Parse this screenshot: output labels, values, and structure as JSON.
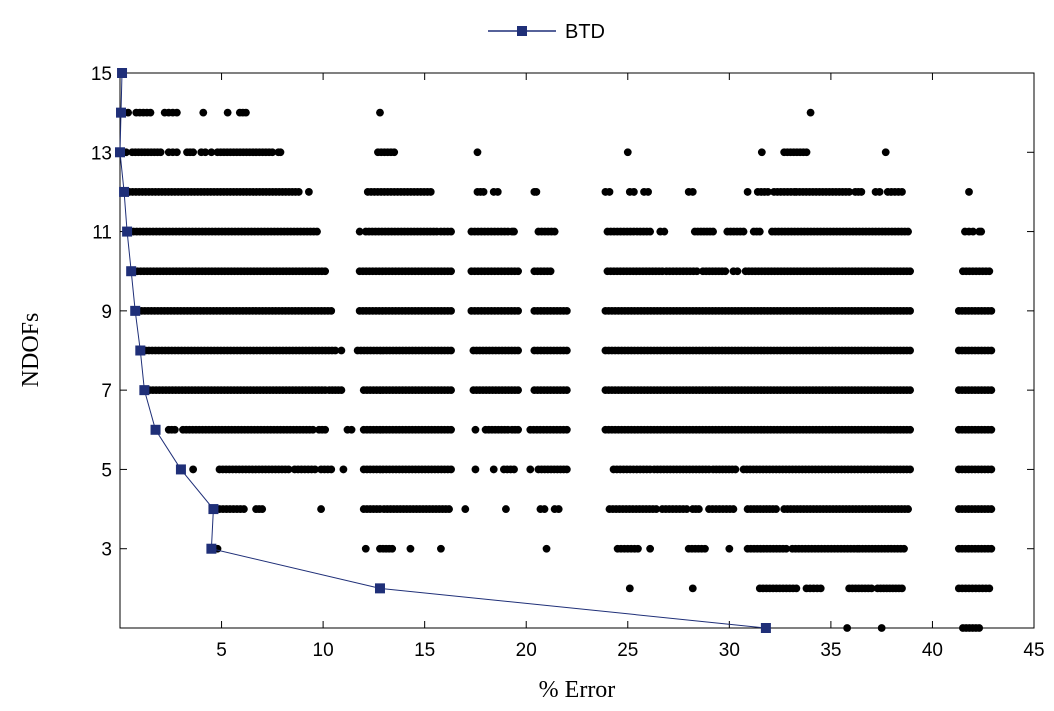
{
  "chart_data": {
    "type": "scatter",
    "xlabel": "% Error",
    "ylabel": "NDOFs",
    "xlim": [
      0,
      45
    ],
    "ylim": [
      1,
      15
    ],
    "xticks": [
      5,
      10,
      15,
      20,
      25,
      30,
      35,
      40,
      45
    ],
    "yticks": [
      3,
      5,
      7,
      9,
      11,
      13,
      15
    ],
    "grid": false,
    "legend_position": "top-center",
    "colors": {
      "btd": "#1f2f78",
      "scatter": "#000000"
    },
    "series": [
      {
        "name": "BTD",
        "kind": "line-with-square-markers",
        "points": [
          {
            "x": 0.1,
            "y": 15
          },
          {
            "x": 0.05,
            "y": 14
          },
          {
            "x": 0.0,
            "y": 13
          },
          {
            "x": 0.2,
            "y": 12
          },
          {
            "x": 0.35,
            "y": 11
          },
          {
            "x": 0.55,
            "y": 10
          },
          {
            "x": 0.75,
            "y": 9
          },
          {
            "x": 1.0,
            "y": 8
          },
          {
            "x": 1.2,
            "y": 7
          },
          {
            "x": 1.75,
            "y": 6
          },
          {
            "x": 3.0,
            "y": 5
          },
          {
            "x": 4.6,
            "y": 4
          },
          {
            "x": 4.5,
            "y": 3
          },
          {
            "x": 12.8,
            "y": 2
          },
          {
            "x": 31.8,
            "y": 1
          }
        ]
      },
      {
        "kind": "scatter-dots",
        "rows": [
          {
            "y": 1,
            "segments": [
              [
                35.8,
                35.8
              ],
              [
                37.5,
                37.5
              ],
              [
                41.5,
                42.3
              ]
            ]
          },
          {
            "y": 2,
            "segments": [
              [
                25.1,
                25.1
              ],
              [
                28.2,
                28.2
              ],
              [
                31.5,
                33.3
              ],
              [
                33.8,
                34.5
              ],
              [
                35.9,
                37.0
              ],
              [
                37.3,
                38.5
              ],
              [
                41.3,
                42.8
              ]
            ]
          },
          {
            "y": 3,
            "segments": [
              [
                4.8,
                4.8
              ],
              [
                12.1,
                12.1
              ],
              [
                12.8,
                13.4
              ],
              [
                14.3,
                14.3
              ],
              [
                15.8,
                15.8
              ],
              [
                21.0,
                21.0
              ],
              [
                24.5,
                25.5
              ],
              [
                26.1,
                26.1
              ],
              [
                28.0,
                28.8
              ],
              [
                30.0,
                30.0
              ],
              [
                30.9,
                32.8
              ],
              [
                33.1,
                36.3
              ],
              [
                36.4,
                38.6
              ],
              [
                41.3,
                42.9
              ]
            ]
          },
          {
            "y": 4,
            "segments": [
              [
                4.9,
                6.1
              ],
              [
                6.7,
                7.0
              ],
              [
                9.9,
                9.9
              ],
              [
                12.0,
                12.8
              ],
              [
                13.0,
                16.2
              ],
              [
                17.0,
                17.0
              ],
              [
                19.0,
                19.0
              ],
              [
                20.7,
                20.9
              ],
              [
                21.4,
                21.6
              ],
              [
                24.1,
                26.4
              ],
              [
                26.7,
                27.9
              ],
              [
                28.2,
                28.5
              ],
              [
                29.0,
                30.2
              ],
              [
                30.9,
                32.3
              ],
              [
                32.7,
                38.8
              ],
              [
                41.3,
                42.9
              ]
            ]
          },
          {
            "y": 5,
            "segments": [
              [
                3.6,
                3.6
              ],
              [
                4.9,
                8.3
              ],
              [
                8.6,
                9.6
              ],
              [
                9.9,
                10.4
              ],
              [
                11.0,
                11.0
              ],
              [
                12.0,
                16.3
              ],
              [
                17.5,
                17.5
              ],
              [
                18.4,
                18.4
              ],
              [
                18.9,
                19.4
              ],
              [
                20.2,
                20.2
              ],
              [
                20.6,
                22.0
              ],
              [
                24.3,
                26.1
              ],
              [
                26.3,
                29.0
              ],
              [
                29.2,
                30.3
              ],
              [
                30.7,
                38.9
              ],
              [
                41.3,
                42.9
              ]
            ]
          },
          {
            "y": 6,
            "segments": [
              [
                2.4,
                2.7
              ],
              [
                3.1,
                9.5
              ],
              [
                9.8,
                10.1
              ],
              [
                11.2,
                11.4
              ],
              [
                12.0,
                16.3
              ],
              [
                17.5,
                17.5
              ],
              [
                18.0,
                19.1
              ],
              [
                19.3,
                19.6
              ],
              [
                20.2,
                22.0
              ],
              [
                23.9,
                38.9
              ],
              [
                41.3,
                42.9
              ]
            ]
          },
          {
            "y": 7,
            "segments": [
              [
                1.3,
                10.1
              ],
              [
                10.3,
                10.9
              ],
              [
                12.0,
                16.3
              ],
              [
                17.4,
                19.6
              ],
              [
                20.4,
                22.0
              ],
              [
                23.9,
                38.9
              ],
              [
                41.3,
                42.9
              ]
            ]
          },
          {
            "y": 8,
            "segments": [
              [
                1.1,
                10.6
              ],
              [
                10.9,
                10.9
              ],
              [
                11.7,
                16.3
              ],
              [
                17.4,
                19.6
              ],
              [
                20.4,
                22.0
              ],
              [
                23.9,
                38.9
              ],
              [
                41.3,
                42.9
              ]
            ]
          },
          {
            "y": 9,
            "segments": [
              [
                0.9,
                10.4
              ],
              [
                11.8,
                16.3
              ],
              [
                17.3,
                19.6
              ],
              [
                20.4,
                22.0
              ],
              [
                23.9,
                38.9
              ],
              [
                41.3,
                42.9
              ]
            ]
          },
          {
            "y": 10,
            "segments": [
              [
                0.7,
                10.1
              ],
              [
                11.8,
                16.3
              ],
              [
                17.3,
                19.6
              ],
              [
                20.4,
                21.2
              ],
              [
                24.0,
                26.7
              ],
              [
                26.9,
                28.4
              ],
              [
                28.7,
                29.8
              ],
              [
                30.2,
                30.4
              ],
              [
                30.8,
                38.9
              ],
              [
                41.5,
                42.8
              ]
            ]
          },
          {
            "y": 11,
            "segments": [
              [
                0.5,
                9.7
              ],
              [
                11.8,
                11.8
              ],
              [
                12.1,
                15.6
              ],
              [
                15.8,
                16.3
              ],
              [
                17.3,
                19.1
              ],
              [
                19.3,
                19.4
              ],
              [
                20.6,
                21.4
              ],
              [
                24.0,
                26.1
              ],
              [
                26.6,
                26.8
              ],
              [
                28.3,
                29.2
              ],
              [
                29.9,
                30.7
              ],
              [
                31.2,
                31.5
              ],
              [
                32.1,
                38.8
              ],
              [
                41.6,
                42.0
              ],
              [
                42.3,
                42.4
              ]
            ]
          },
          {
            "y": 12,
            "segments": [
              [
                0.3,
                8.8
              ],
              [
                9.3,
                9.3
              ],
              [
                12.2,
                15.3
              ],
              [
                17.6,
                17.9
              ],
              [
                18.4,
                18.6
              ],
              [
                20.4,
                20.5
              ],
              [
                23.9,
                24.1
              ],
              [
                25.1,
                25.3
              ],
              [
                25.8,
                26.0
              ],
              [
                28.0,
                28.2
              ],
              [
                30.9,
                30.9
              ],
              [
                31.4,
                31.9
              ],
              [
                32.2,
                33.2
              ],
              [
                33.3,
                35.9
              ],
              [
                36.2,
                36.5
              ],
              [
                37.2,
                37.4
              ],
              [
                37.8,
                38.5
              ],
              [
                41.8,
                41.8
              ]
            ]
          },
          {
            "y": 13,
            "segments": [
              [
                0.2,
                0.3
              ],
              [
                0.6,
                2.0
              ],
              [
                2.4,
                2.8
              ],
              [
                3.3,
                3.6
              ],
              [
                4.0,
                4.2
              ],
              [
                4.5,
                4.5
              ],
              [
                4.8,
                7.5
              ],
              [
                7.8,
                7.9
              ],
              [
                12.7,
                13.5
              ],
              [
                17.6,
                17.6
              ],
              [
                25.0,
                25.0
              ],
              [
                31.6,
                31.6
              ],
              [
                32.7,
                33.8
              ],
              [
                37.7,
                37.7
              ]
            ]
          },
          {
            "y": 14,
            "segments": [
              [
                0.2,
                0.4
              ],
              [
                0.8,
                1.5
              ],
              [
                2.2,
                2.4
              ],
              [
                2.6,
                2.8
              ],
              [
                4.1,
                4.1
              ],
              [
                5.3,
                5.3
              ],
              [
                5.9,
                6.2
              ],
              [
                12.8,
                12.8
              ],
              [
                34.0,
                34.0
              ]
            ]
          },
          {
            "y": 15,
            "segments": []
          }
        ]
      }
    ]
  }
}
